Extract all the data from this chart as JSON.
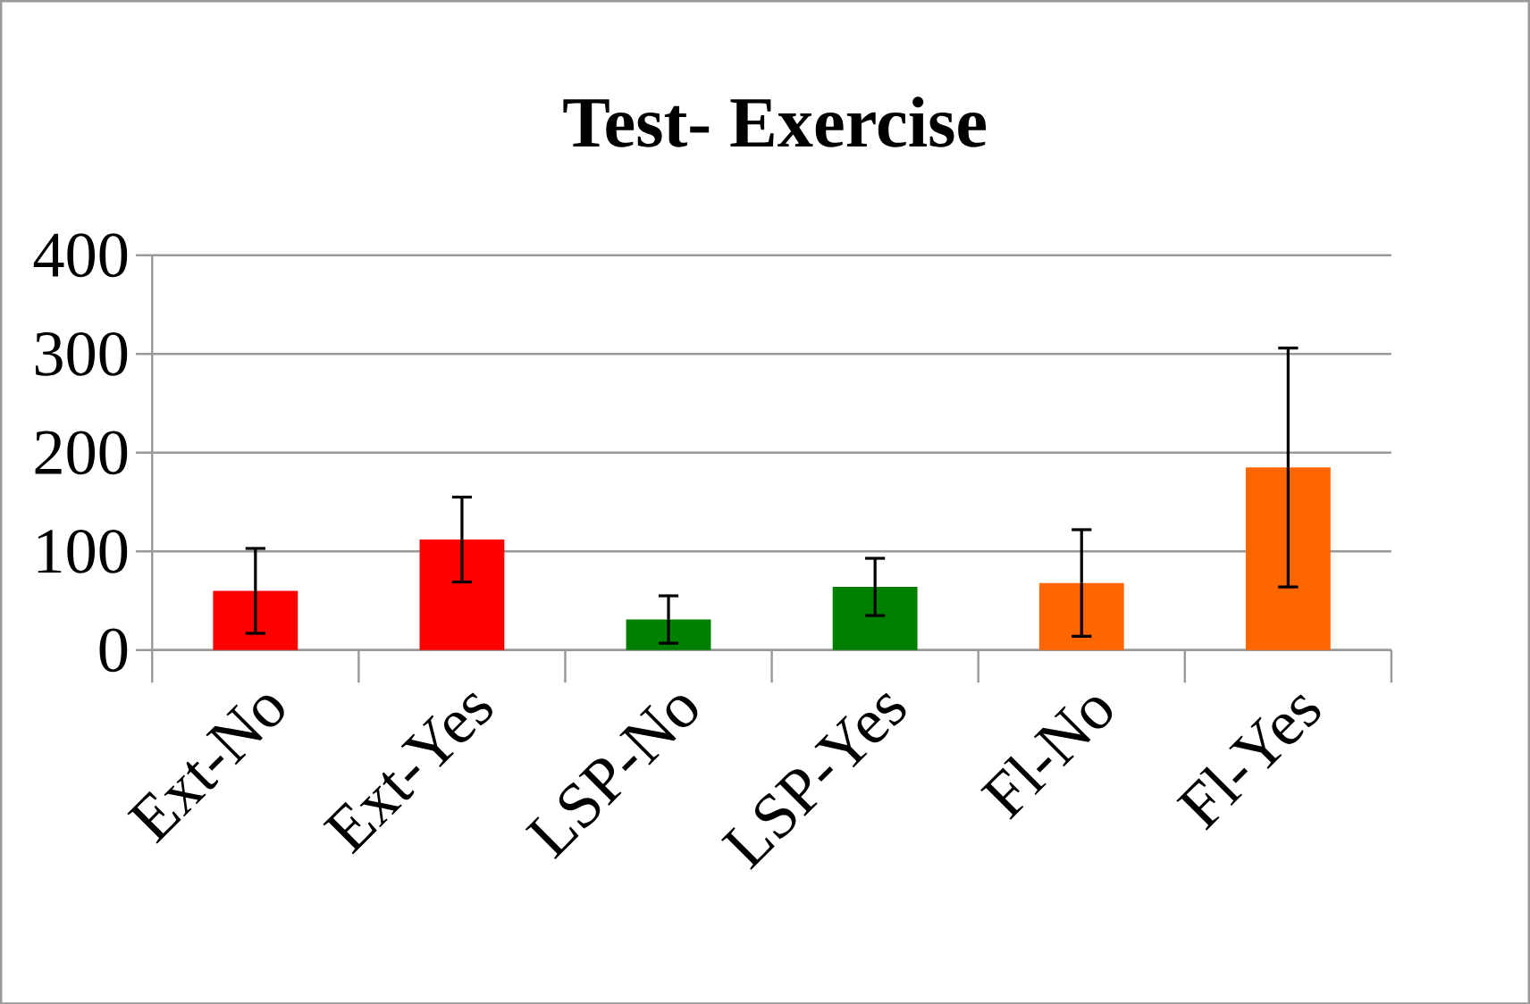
{
  "chart_data": {
    "type": "bar",
    "title": "Test- Exercise",
    "categories": [
      "Ext-No",
      "Ext-Yes",
      "LSP-No",
      "LSP-Yes",
      "Fl-No",
      "Fl-Yes"
    ],
    "values": [
      60,
      112,
      31,
      64,
      68,
      185
    ],
    "errors": [
      43,
      43,
      24,
      29,
      54,
      121
    ],
    "colors": [
      "#ff0000",
      "#ff0000",
      "#008000",
      "#008000",
      "#ff6600",
      "#ff6600"
    ],
    "ylim": [
      0,
      400
    ],
    "yticks": [
      0,
      100,
      200,
      300,
      400
    ],
    "grid": "y"
  }
}
